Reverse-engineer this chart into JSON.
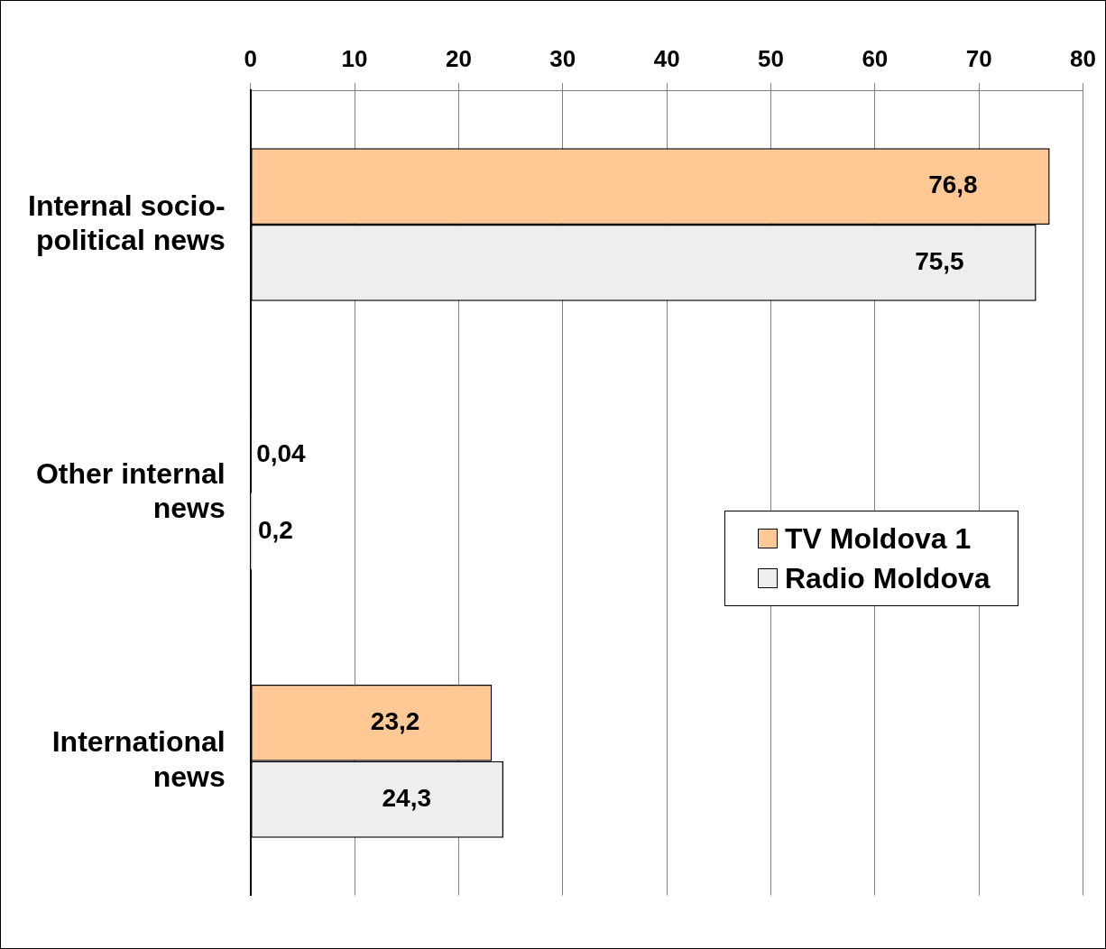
{
  "chart_data": {
    "type": "bar",
    "orientation": "horizontal",
    "categories": [
      "Internal socio-political news",
      "Other internal news",
      "International news"
    ],
    "series": [
      {
        "name": "TV Moldova 1",
        "color": "#ffc894",
        "values": [
          76.8,
          0.04,
          23.2
        ],
        "value_labels": [
          "76,8",
          "0,04",
          "23,2"
        ]
      },
      {
        "name": "Radio Moldova",
        "color": "#eeeeee",
        "values": [
          75.5,
          0.2,
          24.3
        ],
        "value_labels": [
          "75,5",
          "0,2",
          "24,3"
        ]
      }
    ],
    "xlim": [
      0,
      80
    ],
    "xticks": [
      0,
      10,
      20,
      30,
      40,
      50,
      60,
      70,
      80
    ],
    "grid": "x",
    "legend": "right"
  }
}
